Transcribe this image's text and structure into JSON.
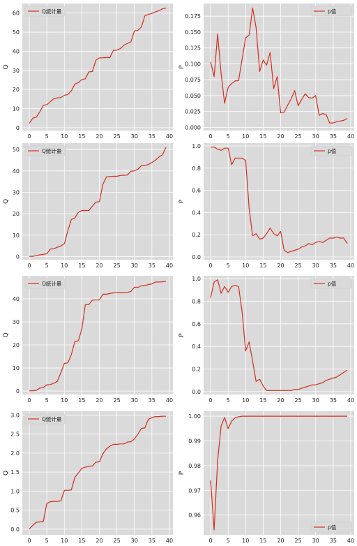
{
  "figure": {
    "colors": {
      "panel_bg": "#dadada",
      "grid": "#ffffff",
      "line": "#d22f1e",
      "text": "#222222"
    }
  },
  "chart_data": [
    {
      "type": "line",
      "title": "",
      "xlabel": "",
      "ylabel": "Q",
      "legend": {
        "label": "Q统计量",
        "position": "top-left"
      },
      "xlim": [
        -2,
        41
      ],
      "ylim": [
        -1.5,
        65
      ],
      "xticks": [
        0,
        5,
        10,
        15,
        20,
        25,
        30,
        35,
        40
      ],
      "yticks": [
        0,
        10,
        20,
        30,
        40,
        50,
        60
      ],
      "grid": true,
      "series": [
        {
          "name": "Q统计量",
          "x": [
            0,
            1,
            2,
            3,
            4,
            5,
            6,
            7,
            8,
            9,
            10,
            11,
            12,
            13,
            14,
            15,
            16,
            17,
            18,
            19,
            20,
            21,
            22,
            23,
            24,
            25,
            26,
            27,
            28,
            29,
            30,
            31,
            32,
            33,
            34,
            35,
            36,
            37,
            38,
            39
          ],
          "values": [
            2.3,
            5.0,
            5.5,
            8.3,
            11.7,
            12.1,
            13.6,
            15.2,
            15.6,
            15.8,
            16.9,
            17.4,
            19.3,
            22.8,
            23.6,
            25.2,
            25.6,
            29.2,
            29.4,
            35.3,
            36.5,
            36.6,
            36.7,
            36.7,
            40.5,
            40.6,
            41.4,
            43.1,
            44.1,
            44.9,
            50.6,
            51.0,
            52.7,
            58.6,
            59.3,
            59.8,
            60.6,
            61.2,
            62.2,
            62.6
          ]
        }
      ]
    },
    {
      "type": "line",
      "title": "",
      "xlabel": "",
      "ylabel": "P",
      "legend": {
        "label": "p值",
        "position": "top-right"
      },
      "xlim": [
        -2,
        41
      ],
      "ylim": [
        -0.005,
        0.195
      ],
      "xticks": [
        0,
        5,
        10,
        15,
        20,
        25,
        30,
        35,
        40
      ],
      "yticks": [
        "0.000",
        "0.025",
        "0.050",
        "0.075",
        "0.100",
        "0.125",
        "0.150",
        "0.175"
      ],
      "grid": true,
      "series": [
        {
          "name": "p值",
          "x": [
            0,
            1,
            2,
            3,
            4,
            5,
            6,
            7,
            8,
            9,
            10,
            11,
            12,
            13,
            14,
            15,
            16,
            17,
            18,
            19,
            20,
            21,
            22,
            23,
            24,
            25,
            26,
            27,
            28,
            29,
            30,
            31,
            32,
            33,
            34,
            35,
            36,
            37,
            38,
            39
          ],
          "values": [
            0.103,
            0.08,
            0.147,
            0.085,
            0.038,
            0.063,
            0.069,
            0.073,
            0.074,
            0.108,
            0.141,
            0.145,
            0.188,
            0.157,
            0.088,
            0.106,
            0.098,
            0.118,
            0.061,
            0.08,
            0.023,
            0.024,
            0.035,
            0.045,
            0.058,
            0.034,
            0.044,
            0.053,
            0.047,
            0.046,
            0.05,
            0.019,
            0.022,
            0.02,
            0.007,
            0.007,
            0.009,
            0.01,
            0.011,
            0.014
          ]
        }
      ]
    },
    {
      "type": "line",
      "title": "",
      "xlabel": "",
      "ylabel": "Q",
      "legend": {
        "label": "Q统计量",
        "position": "top-left"
      },
      "xlim": [
        -2,
        41
      ],
      "ylim": [
        -1.5,
        53
      ],
      "xticks": [
        0,
        5,
        10,
        15,
        20,
        25,
        30,
        35,
        40
      ],
      "yticks": [
        0,
        10,
        20,
        30,
        40,
        50
      ],
      "grid": true,
      "series": [
        {
          "name": "Q统计量",
          "x": [
            0,
            1,
            2,
            3,
            4,
            5,
            6,
            7,
            8,
            9,
            10,
            11,
            12,
            13,
            14,
            15,
            16,
            17,
            18,
            19,
            20,
            21,
            22,
            23,
            24,
            25,
            26,
            27,
            28,
            29,
            30,
            31,
            32,
            33,
            34,
            35,
            36,
            37,
            38,
            39
          ],
          "values": [
            0.1,
            0.1,
            0.4,
            0.8,
            1.0,
            1.3,
            3.5,
            3.7,
            4.3,
            5.0,
            6.0,
            12.0,
            17.3,
            18.0,
            20.7,
            21.5,
            21.5,
            21.5,
            23.5,
            25.5,
            25.6,
            33.7,
            37.2,
            37.4,
            37.5,
            37.5,
            37.9,
            38.0,
            38.1,
            39.9,
            40.0,
            40.8,
            42.5,
            42.6,
            43.0,
            44.0,
            45.0,
            46.5,
            47.5,
            51.0
          ]
        }
      ]
    },
    {
      "type": "line",
      "title": "",
      "xlabel": "",
      "ylabel": "P",
      "legend": {
        "label": "p值",
        "position": "top-right"
      },
      "xlim": [
        -2,
        41
      ],
      "ylim": [
        -0.025,
        1.025
      ],
      "xticks": [
        0,
        5,
        10,
        15,
        20,
        25,
        30,
        35,
        40
      ],
      "yticks": [
        "0.0",
        "0.2",
        "0.4",
        "0.6",
        "0.8",
        "1.0"
      ],
      "grid": true,
      "series": [
        {
          "name": "p值",
          "x": [
            0,
            1,
            2,
            3,
            4,
            5,
            6,
            7,
            8,
            9,
            10,
            11,
            12,
            13,
            14,
            15,
            16,
            17,
            18,
            19,
            20,
            21,
            22,
            23,
            24,
            25,
            26,
            27,
            28,
            29,
            30,
            31,
            32,
            33,
            34,
            35,
            36,
            37,
            38,
            39
          ],
          "values": [
            0.99,
            0.99,
            0.97,
            0.96,
            0.98,
            0.98,
            0.83,
            0.89,
            0.89,
            0.89,
            0.87,
            0.44,
            0.19,
            0.21,
            0.16,
            0.17,
            0.21,
            0.26,
            0.21,
            0.19,
            0.23,
            0.06,
            0.04,
            0.05,
            0.06,
            0.07,
            0.09,
            0.1,
            0.12,
            0.11,
            0.13,
            0.14,
            0.13,
            0.15,
            0.17,
            0.17,
            0.18,
            0.17,
            0.17,
            0.12
          ]
        }
      ]
    },
    {
      "type": "line",
      "title": "",
      "xlabel": "",
      "ylabel": "Q",
      "legend": {
        "label": "Q统计量",
        "position": "top-left"
      },
      "xlim": [
        -2,
        41
      ],
      "ylim": [
        -1.5,
        50
      ],
      "xticks": [
        0,
        5,
        10,
        15,
        20,
        25,
        30,
        35,
        40
      ],
      "yticks": [
        0,
        10,
        20,
        30,
        40
      ],
      "grid": true,
      "series": [
        {
          "name": "Q统计量",
          "x": [
            0,
            1,
            2,
            3,
            4,
            5,
            6,
            7,
            8,
            9,
            10,
            11,
            12,
            13,
            14,
            15,
            16,
            17,
            18,
            19,
            20,
            21,
            22,
            23,
            24,
            25,
            26,
            27,
            28,
            29,
            30,
            31,
            32,
            33,
            34,
            35,
            36,
            37,
            38,
            39
          ],
          "values": [
            0.1,
            0.1,
            0.3,
            1.3,
            1.5,
            2.7,
            2.8,
            3.4,
            4.2,
            8.0,
            12.0,
            12.2,
            15.8,
            21.5,
            21.8,
            27.0,
            37.5,
            37.5,
            39.5,
            39.5,
            39.5,
            42.0,
            42.0,
            42.3,
            42.6,
            42.6,
            42.7,
            42.7,
            42.8,
            43.2,
            45.0,
            45.0,
            45.6,
            45.8,
            46.2,
            46.5,
            47.3,
            47.3,
            47.4,
            47.6
          ]
        }
      ]
    },
    {
      "type": "line",
      "title": "",
      "xlabel": "",
      "ylabel": "P",
      "legend": {
        "label": "p值",
        "position": "top-right"
      },
      "xlim": [
        -2,
        41
      ],
      "ylim": [
        -0.025,
        1.025
      ],
      "xticks": [
        0,
        5,
        10,
        15,
        20,
        25,
        30,
        35,
        40
      ],
      "yticks": [
        "0.0",
        "0.2",
        "0.4",
        "0.6",
        "0.8",
        "1.0"
      ],
      "grid": true,
      "series": [
        {
          "name": "p值",
          "x": [
            0,
            1,
            2,
            3,
            4,
            5,
            6,
            7,
            8,
            9,
            10,
            11,
            12,
            13,
            14,
            15,
            16,
            17,
            18,
            19,
            20,
            21,
            22,
            23,
            24,
            25,
            26,
            27,
            28,
            29,
            30,
            31,
            32,
            33,
            34,
            35,
            36,
            37,
            38,
            39
          ],
          "values": [
            0.83,
            0.97,
            0.99,
            0.87,
            0.93,
            0.88,
            0.93,
            0.94,
            0.93,
            0.7,
            0.36,
            0.44,
            0.27,
            0.09,
            0.11,
            0.05,
            0.01,
            0.01,
            0.01,
            0.01,
            0.01,
            0.01,
            0.01,
            0.01,
            0.02,
            0.02,
            0.03,
            0.04,
            0.05,
            0.06,
            0.06,
            0.07,
            0.08,
            0.1,
            0.11,
            0.12,
            0.13,
            0.15,
            0.17,
            0.19
          ]
        }
      ]
    },
    {
      "type": "line",
      "title": "",
      "xlabel": "",
      "ylabel": "Q",
      "legend": {
        "label": "Q统计量",
        "position": "top-left"
      },
      "xlim": [
        -2,
        41
      ],
      "ylim": [
        -0.15,
        3.1
      ],
      "xticks": [
        0,
        5,
        10,
        15,
        20,
        25,
        30,
        35,
        40
      ],
      "yticks": [
        "0.0",
        "0.5",
        "1.0",
        "1.5",
        "2.0",
        "2.5",
        "3.0"
      ],
      "grid": true,
      "series": [
        {
          "name": "Q统计量",
          "x": [
            0,
            1,
            2,
            3,
            4,
            5,
            6,
            7,
            8,
            9,
            10,
            11,
            12,
            13,
            14,
            15,
            16,
            17,
            18,
            19,
            20,
            21,
            22,
            23,
            24,
            25,
            26,
            27,
            28,
            29,
            30,
            31,
            32,
            33,
            34,
            35,
            36,
            37,
            38,
            39
          ],
          "values": [
            0.0,
            0.1,
            0.18,
            0.19,
            0.2,
            0.68,
            0.72,
            0.73,
            0.73,
            0.74,
            1.02,
            1.02,
            1.03,
            1.36,
            1.48,
            1.6,
            1.63,
            1.65,
            1.66,
            1.76,
            1.77,
            1.98,
            2.11,
            2.18,
            2.23,
            2.23,
            2.24,
            2.24,
            2.29,
            2.3,
            2.37,
            2.5,
            2.65,
            2.66,
            2.89,
            2.93,
            2.96,
            2.96,
            2.97,
            2.97
          ]
        }
      ]
    },
    {
      "type": "line",
      "title": "",
      "xlabel": "",
      "ylabel": "P",
      "legend": {
        "label": "p值",
        "position": "bottom-right"
      },
      "xlim": [
        -2,
        41
      ],
      "ylim": [
        0.952,
        1.002
      ],
      "xticks": [
        0,
        5,
        10,
        15,
        20,
        25,
        30,
        35,
        40
      ],
      "yticks": [
        "0.96",
        "0.97",
        "0.98",
        "0.99",
        "1.00"
      ],
      "grid": true,
      "series": [
        {
          "name": "p值",
          "x": [
            0,
            1,
            2,
            3,
            4,
            5,
            6,
            7,
            8,
            9,
            10,
            11,
            12,
            13,
            14,
            15,
            16,
            17,
            18,
            19,
            20,
            21,
            22,
            23,
            24,
            25,
            26,
            27,
            28,
            29,
            30,
            31,
            32,
            33,
            34,
            35,
            36,
            37,
            38,
            39
          ],
          "values": [
            0.974,
            0.954,
            0.982,
            0.996,
            0.9995,
            0.995,
            0.998,
            0.9993,
            0.9998,
            1.0,
            1.0,
            1.0,
            1.0,
            1.0,
            1.0,
            1.0,
            1.0,
            1.0,
            1.0,
            1.0,
            1.0,
            1.0,
            1.0,
            1.0,
            1.0,
            1.0,
            1.0,
            1.0,
            1.0,
            1.0,
            1.0,
            1.0,
            1.0,
            1.0,
            1.0,
            1.0,
            1.0,
            1.0,
            1.0,
            1.0
          ]
        }
      ]
    }
  ]
}
